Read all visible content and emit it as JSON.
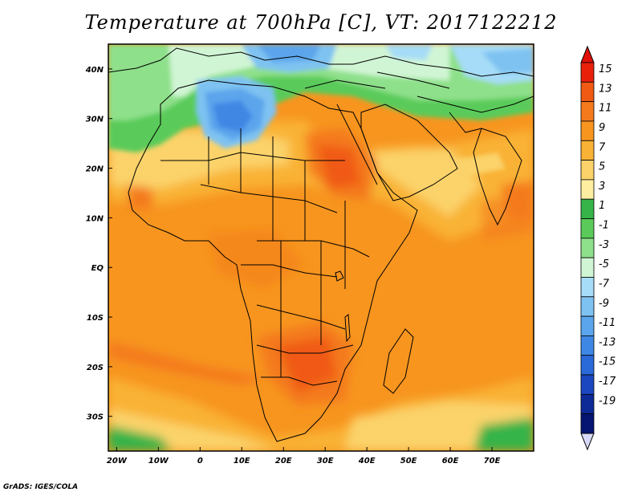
{
  "title": "Temperature at 700hPa [C], VT: 2017122212",
  "credit": "GrADS: IGES/COLA",
  "map": {
    "lon_range": [
      -22,
      80
    ],
    "lat_range": [
      -37,
      45
    ],
    "lon_ticks": [
      {
        "lon": -20,
        "label": "20W"
      },
      {
        "lon": -10,
        "label": "10W"
      },
      {
        "lon": 0,
        "label": "0"
      },
      {
        "lon": 10,
        "label": "10E"
      },
      {
        "lon": 20,
        "label": "20E"
      },
      {
        "lon": 30,
        "label": "30E"
      },
      {
        "lon": 40,
        "label": "40E"
      },
      {
        "lon": 50,
        "label": "50E"
      },
      {
        "lon": 60,
        "label": "60E"
      },
      {
        "lon": 70,
        "label": "70E"
      }
    ],
    "lat_ticks": [
      {
        "lat": 40,
        "label": "40N"
      },
      {
        "lat": 30,
        "label": "30N"
      },
      {
        "lat": 20,
        "label": "20N"
      },
      {
        "lat": 10,
        "label": "10N"
      },
      {
        "lat": 0,
        "label": "EQ"
      },
      {
        "lat": -10,
        "label": "10S"
      },
      {
        "lat": -20,
        "label": "20S"
      },
      {
        "lat": -30,
        "label": "30S"
      }
    ]
  },
  "colorbar": {
    "labels": [
      "15",
      "13",
      "11",
      "9",
      "7",
      "5",
      "3",
      "1",
      "-1",
      "-3",
      "-5",
      "-7",
      "-9",
      "-11",
      "-13",
      "-15",
      "-17",
      "-19"
    ],
    "colors": [
      "#e8200a",
      "#f05a12",
      "#f47a1c",
      "#f7951f",
      "#f9b236",
      "#fbd36a",
      "#fdeea0",
      "#36b449",
      "#5acb5a",
      "#8ee08a",
      "#d0f5d4",
      "#a6dcf7",
      "#7ec2f2",
      "#5ba5ec",
      "#3f87e4",
      "#2a69d8",
      "#1b48c0",
      "#0e2a96",
      "#061572"
    ],
    "top_arrow_color": "#e01008",
    "bottom_arrow_color": "#d8d8f8"
  }
}
